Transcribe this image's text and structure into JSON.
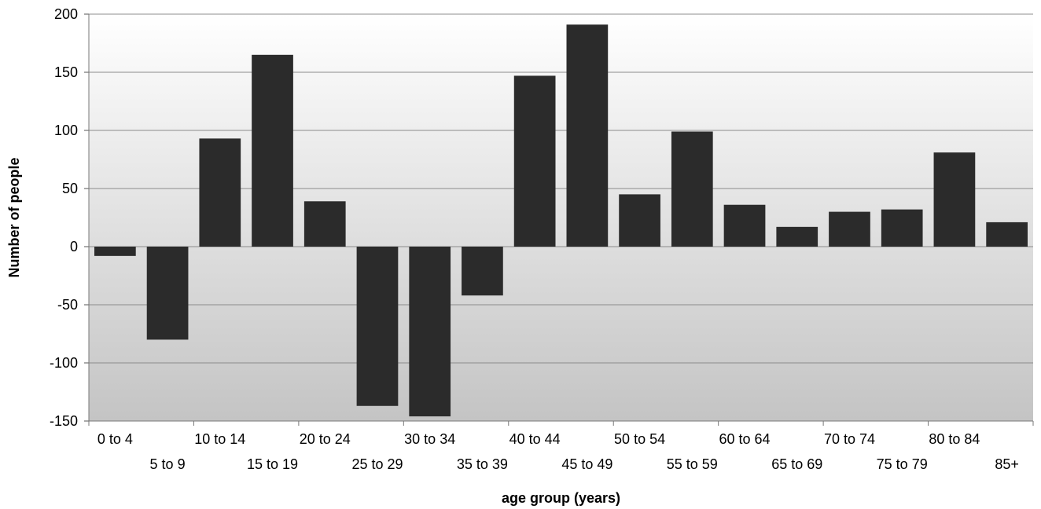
{
  "chart_data": {
    "type": "bar",
    "title": "",
    "xlabel": "age group (years)",
    "ylabel": "Number of people",
    "categories": [
      "0 to 4",
      "5 to 9",
      "10 to 14",
      "15 to 19",
      "20 to 24",
      "25 to 29",
      "30 to 34",
      "35 to 39",
      "40 to 44",
      "45 to 49",
      "50 to 54",
      "55 to 59",
      "60 to 64",
      "65 to 69",
      "70 to 74",
      "75 to 79",
      "80 to 84",
      "85+"
    ],
    "values": [
      -8,
      -80,
      93,
      165,
      39,
      -137,
      -146,
      -42,
      147,
      191,
      45,
      99,
      36,
      17,
      30,
      32,
      81,
      21
    ],
    "ylim": [
      -150,
      200
    ],
    "yticks": [
      200,
      150,
      100,
      50,
      0,
      -50,
      -100,
      -150
    ],
    "grid": true,
    "legend": "none",
    "colors": {
      "bar": "#2b2b2b",
      "grid": "#8c8c8c",
      "plot_bg_top": "#ffffff",
      "plot_bg_bottom": "#c4c4c4"
    }
  }
}
